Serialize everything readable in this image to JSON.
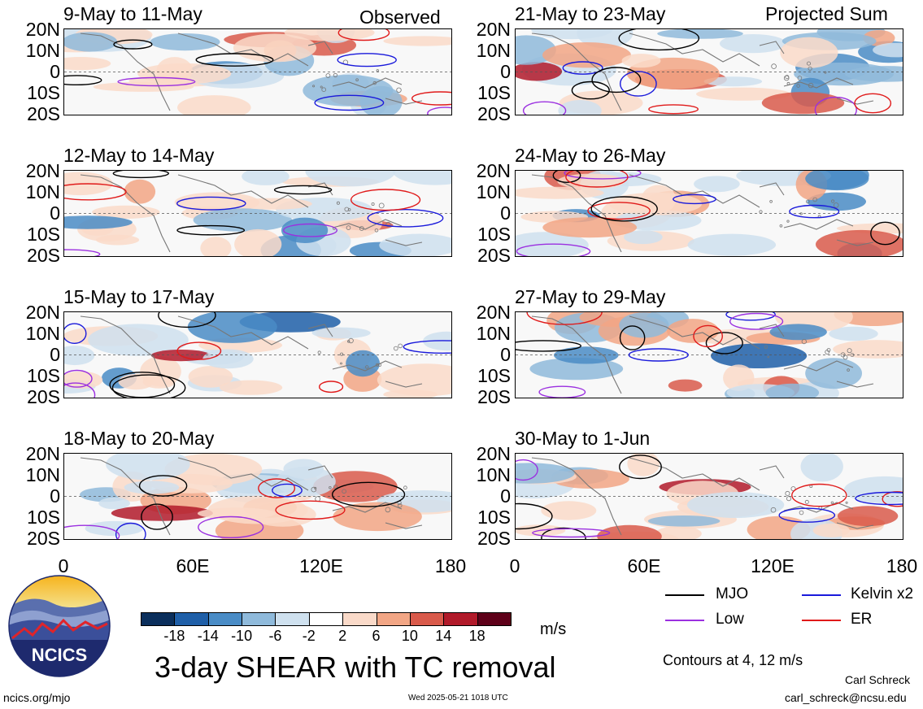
{
  "header": {
    "left_label": "Observed",
    "right_label": "Projected Sum"
  },
  "panels_left": [
    {
      "title": "9-May to 11-May"
    },
    {
      "title": "12-May to 14-May"
    },
    {
      "title": "15-May to 17-May"
    },
    {
      "title": "18-May to 20-May"
    }
  ],
  "panels_right": [
    {
      "title": "21-May to 23-May"
    },
    {
      "title": "24-May to 26-May"
    },
    {
      "title": "27-May to 29-May"
    },
    {
      "title": "30-May to 1-Jun"
    }
  ],
  "lat_labels": [
    "20N",
    "10N",
    "0",
    "10S",
    "20S"
  ],
  "lon_labels": [
    "0",
    "60E",
    "120E",
    "180"
  ],
  "colorbar": {
    "labels": [
      "-18",
      "-14",
      "-10",
      "-6",
      "-2",
      "2",
      "6",
      "10",
      "14",
      "18"
    ],
    "colors": [
      "#0b2f5c",
      "#1f5fa8",
      "#4a8cc6",
      "#8fbadb",
      "#cfe1ef",
      "#ffffff",
      "#fadac9",
      "#f2a685",
      "#d95a4b",
      "#b11a2a",
      "#5e0019"
    ],
    "units": "m/s"
  },
  "main_title": "3-day SHEAR with TC removal",
  "legend": {
    "mjo": {
      "label": "MJO",
      "color": "#000000"
    },
    "kelvin": {
      "label": "Kelvin x2",
      "color": "#1a1adb"
    },
    "low": {
      "label": "Low",
      "color": "#9b30e0"
    },
    "er": {
      "label": "ER",
      "color": "#e01a1a"
    }
  },
  "contours_note": "Contours at 4, 12 m/s",
  "logo": {
    "text": "NCICS"
  },
  "footer": {
    "url": "ncics.org/mjo",
    "timestamp": "Wed 2025-05-21 1018 UTC",
    "author": "Carl Schreck",
    "email": "carl_schreck@ncsu.edu"
  }
}
